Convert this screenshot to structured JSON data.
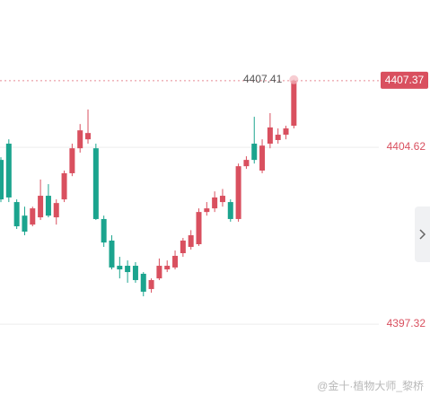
{
  "chart_data": {
    "type": "candlestick",
    "ylim": [
      4394.21,
      4410.7
    ],
    "yticks": [
      4397.32,
      4404.62
    ],
    "grid": true,
    "up_color": "#d9505f",
    "down_color": "#1ba48e",
    "open": [
      4404.1,
      4404.77,
      4402.36,
      4401.8,
      4401.43,
      4401.73,
      4402.62,
      4401.73,
      4402.47,
      4403.55,
      4404.58,
      4404.95,
      4404.58,
      4401.66,
      4400.77,
      4399.73,
      4399.73,
      4399.73,
      4399.4,
      4398.77,
      4399.21,
      4399.58,
      4399.66,
      4400.25,
      4400.51,
      4400.62,
      4401.95,
      4402.1,
      4402.36,
      4402.36,
      4401.66,
      4403.84,
      4404.77,
      4403.66,
      4404.77,
      4404.92,
      4405.14,
      4405.51
    ],
    "high": [
      4404.21,
      4404.95,
      4402.47,
      4402.17,
      4402.17,
      4403.29,
      4403.1,
      4402.47,
      4403.66,
      4404.77,
      4405.58,
      4406.18,
      4404.77,
      4401.8,
      4400.99,
      4400.1,
      4399.95,
      4399.88,
      4399.47,
      4399.21,
      4400.03,
      4399.95,
      4400.36,
      4400.88,
      4401.2,
      4402.1,
      4402.36,
      4402.8,
      4402.9,
      4402.47,
      4403.95,
      4404.25,
      4405.88,
      4404.95,
      4406.03,
      4405.4,
      4405.51,
      4407.41
    ],
    "low": [
      4402.36,
      4402.36,
      4401.25,
      4400.99,
      4401.36,
      4401.62,
      4401.73,
      4401.43,
      4402.36,
      4403.43,
      4404.4,
      4404.77,
      4401.62,
      4400.51,
      4399.58,
      4399.21,
      4399.03,
      4399.03,
      4398.47,
      4398.62,
      4399.14,
      4399.47,
      4399.58,
      4400.1,
      4400.4,
      4400.55,
      4401.8,
      4401.95,
      4402.17,
      4401.55,
      4401.55,
      4403.73,
      4403.95,
      4403.55,
      4404.58,
      4404.77,
      4404.95,
      4405.4
    ],
    "close": [
      4402.47,
      4402.55,
      4401.36,
      4401.14,
      4402.1,
      4402.62,
      4401.8,
      4402.32,
      4403.55,
      4404.58,
      4405.32,
      4405.21,
      4401.66,
      4400.69,
      4399.66,
      4399.58,
      4399.47,
      4399.14,
      4398.66,
      4399.14,
      4399.73,
      4399.73,
      4400.14,
      4400.77,
      4400.99,
      4401.95,
      4402.1,
      4402.55,
      4402.62,
      4401.66,
      4403.84,
      4404.1,
      4404.1,
      4404.69,
      4405.44,
      4405.14,
      4405.4,
      4407.37
    ],
    "high_label": 4407.41,
    "last_price": 4407.37,
    "watermark": "@金十·植物大师_黎桥"
  }
}
